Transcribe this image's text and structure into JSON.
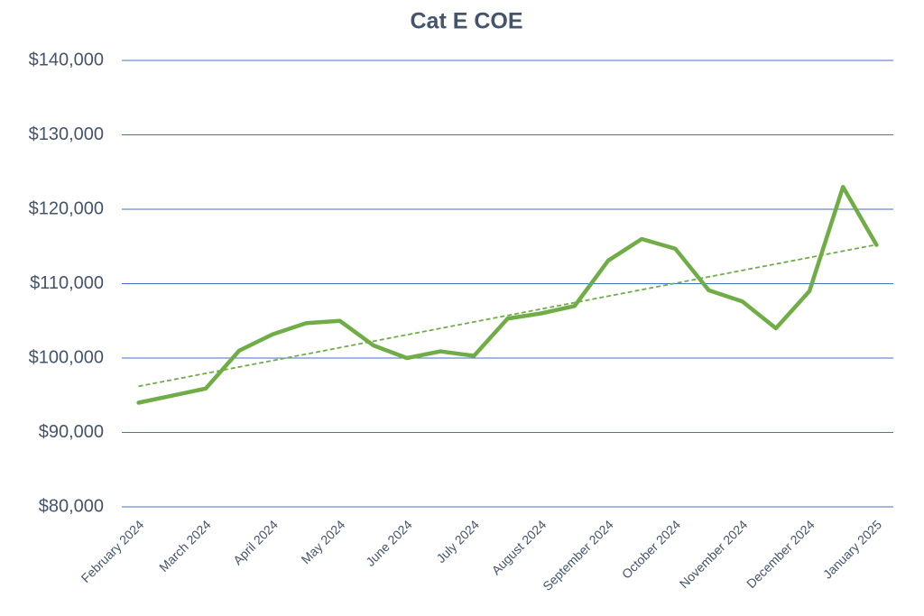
{
  "chart_data": {
    "type": "line",
    "title": "Cat E COE",
    "categories": [
      "February 2024",
      null,
      "March 2024",
      null,
      "April 2024",
      null,
      "May 2024",
      null,
      "June 2024",
      null,
      "July 2024",
      null,
      "August 2024",
      null,
      "September 2024",
      null,
      "October 2024",
      null,
      "November 2024",
      null,
      "December 2024",
      null,
      "January 2025"
    ],
    "series": [
      {
        "name": "Cat E COE",
        "color": "#70ad47",
        "values": [
          94000,
          94950,
          95900,
          101000,
          103200,
          104700,
          105000,
          101700,
          100000,
          100900,
          100300,
          105300,
          106000,
          107000,
          113100,
          116000,
          114700,
          109100,
          107600,
          104000,
          109000,
          123000,
          115200
        ]
      }
    ],
    "ylim": [
      80000,
      140000
    ],
    "yticks": [
      {
        "value": 80000,
        "label": "$80,000"
      },
      {
        "value": 90000,
        "label": "$90,000"
      },
      {
        "value": 100000,
        "label": "$100,000"
      },
      {
        "value": 110000,
        "label": "$110,000"
      },
      {
        "value": 120000,
        "label": "$120,000"
      },
      {
        "value": 130000,
        "label": "$130,000"
      },
      {
        "value": 140000,
        "label": "$140,000"
      }
    ],
    "grid": true,
    "trendline": "linear"
  }
}
